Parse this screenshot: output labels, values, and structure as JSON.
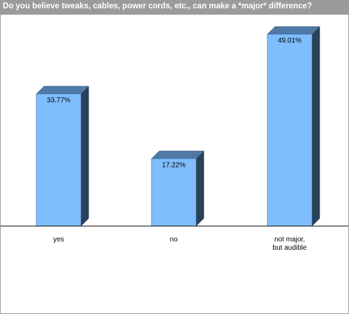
{
  "chart_data": {
    "type": "bar",
    "title": "Do you believe tweaks, cables, power cords, etc., can make a *major* difference?",
    "categories": [
      "yes",
      "no",
      "not major, but audible"
    ],
    "category_lines": [
      [
        "yes"
      ],
      [
        "no"
      ],
      [
        "not major,",
        "but audible"
      ]
    ],
    "values": [
      33.77,
      17.22,
      49.01
    ],
    "value_labels": [
      "33.77%",
      "17.22%",
      "49.01%"
    ],
    "ylim": [
      0,
      55
    ],
    "grid": false,
    "legend": "none",
    "colors": {
      "bar_front": "#7fbdff",
      "bar_top": "#4f7aa8",
      "bar_side": "#2a4258",
      "title_bar": "#9b9b9b",
      "baseline": "#000000"
    }
  }
}
